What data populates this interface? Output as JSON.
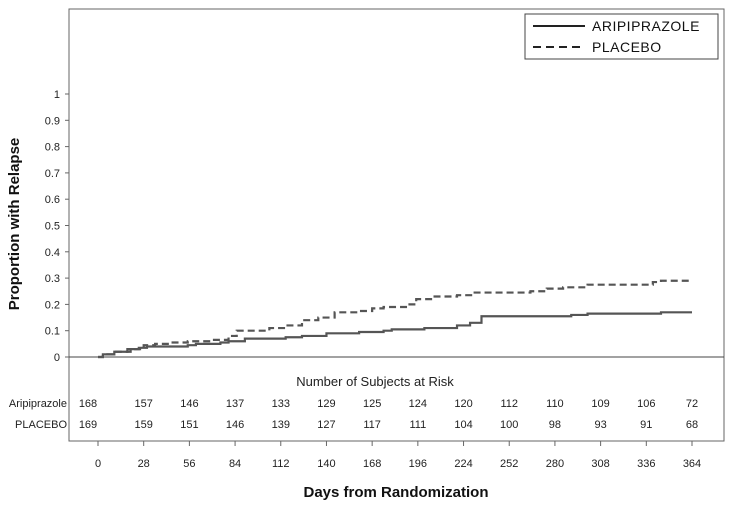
{
  "chart_data": {
    "type": "line",
    "step": true,
    "ylabel": "Proportion with Relapse",
    "xlabel": "Days from Randomization",
    "ylim": [
      0,
      1.3
    ],
    "xlim": [
      0,
      364
    ],
    "y_ticks": [
      0,
      0.1,
      0.2,
      0.3,
      0.4,
      0.5,
      0.6,
      0.7,
      0.8,
      0.9,
      1
    ],
    "y_tick_labels": [
      "0",
      "0.1",
      "0.2",
      "0.3",
      "0.4",
      "0.5",
      "0.6",
      "0.7",
      "0.8",
      "0.9",
      "1"
    ],
    "x_ticks": [
      0,
      28,
      56,
      84,
      112,
      140,
      168,
      196,
      224,
      252,
      280,
      308,
      336,
      364
    ],
    "grid": false,
    "legend_position": "top-right",
    "series": [
      {
        "name": "ARIPIPRAZOLE",
        "style": "solid",
        "color": "#555555",
        "x": [
          0,
          3,
          10,
          18,
          25,
          30,
          55,
          60,
          75,
          80,
          90,
          115,
          125,
          140,
          160,
          175,
          180,
          200,
          220,
          228,
          235,
          270,
          290,
          300,
          340,
          345,
          364
        ],
        "y": [
          0,
          0.01,
          0.02,
          0.03,
          0.035,
          0.04,
          0.045,
          0.05,
          0.055,
          0.06,
          0.07,
          0.075,
          0.08,
          0.09,
          0.095,
          0.1,
          0.105,
          0.11,
          0.12,
          0.13,
          0.155,
          0.155,
          0.16,
          0.165,
          0.165,
          0.17,
          0.17
        ]
      },
      {
        "name": "PLACEBO",
        "style": "dashed",
        "color": "#555555",
        "x": [
          0,
          3,
          10,
          20,
          28,
          35,
          45,
          55,
          70,
          80,
          85,
          105,
          115,
          125,
          135,
          145,
          160,
          168,
          175,
          190,
          195,
          205,
          220,
          230,
          265,
          275,
          285,
          300,
          340,
          345,
          364
        ],
        "y": [
          0,
          0.01,
          0.02,
          0.03,
          0.045,
          0.05,
          0.055,
          0.06,
          0.065,
          0.08,
          0.1,
          0.11,
          0.12,
          0.14,
          0.15,
          0.17,
          0.175,
          0.185,
          0.19,
          0.2,
          0.22,
          0.23,
          0.235,
          0.245,
          0.25,
          0.26,
          0.265,
          0.275,
          0.285,
          0.29,
          0.29
        ]
      }
    ],
    "risk_table": {
      "title": "Number of Subjects at Risk",
      "rows": [
        {
          "label": "Aripiprazole",
          "values": [
            "168",
            "157",
            "146",
            "137",
            "133",
            "129",
            "125",
            "124",
            "120",
            "112",
            "110",
            "109",
            "106",
            "72"
          ]
        },
        {
          "label": "PLACEBO",
          "values": [
            "169",
            "159",
            "151",
            "146",
            "139",
            "127",
            "117",
            "111",
            "104",
            "100",
            "98",
            "93",
            "91",
            "68"
          ]
        }
      ]
    }
  }
}
